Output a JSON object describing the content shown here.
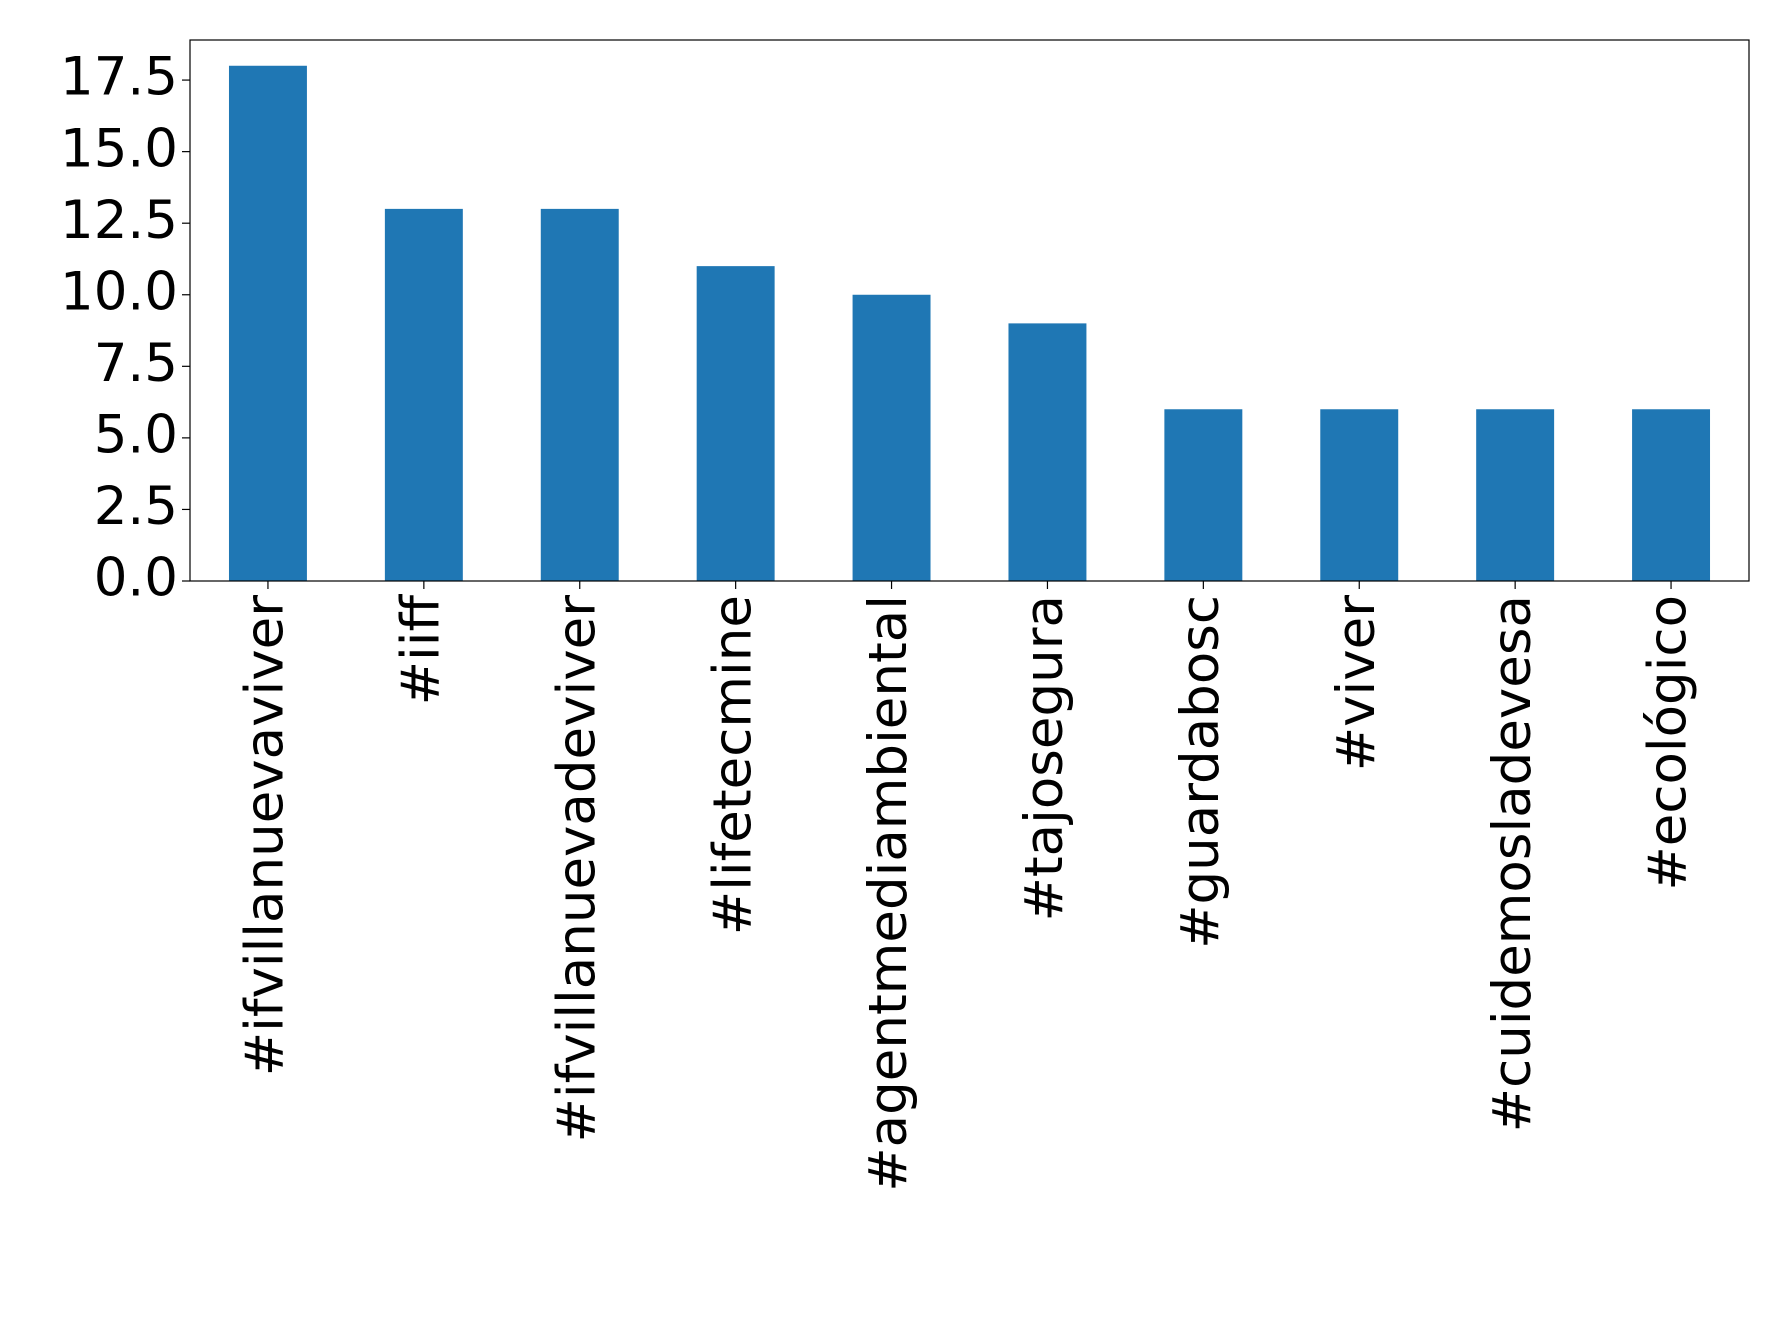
{
  "chart_data": {
    "type": "bar",
    "categories": [
      "#ifvillanuevaviver",
      "#iiff",
      "#ifvillanuevadeviver",
      "#lifetecmine",
      "#agentmediambiental",
      "#tajosegura",
      "#guardabosc",
      "#viver",
      "#cuidemosladevesa",
      "#ecológico"
    ],
    "values": [
      18,
      13,
      13,
      11,
      10,
      9,
      6,
      6,
      6,
      6
    ],
    "color": "#1f77b4",
    "ylim": [
      0,
      18.9
    ],
    "yticks": [
      {
        "value": 0,
        "label": "0.0"
      },
      2.5,
      {
        "value": 5,
        "label": "5.0"
      },
      7.5,
      {
        "value": 10,
        "label": "10.0"
      },
      12.5,
      {
        "value": 15,
        "label": "15.0"
      },
      17.5
    ]
  }
}
